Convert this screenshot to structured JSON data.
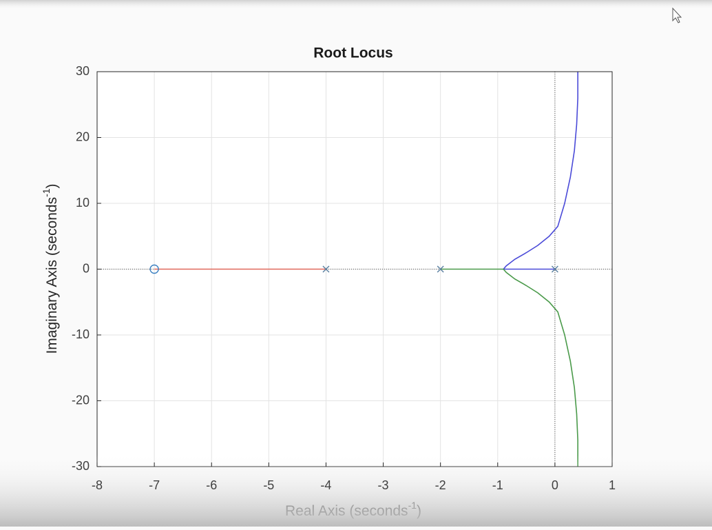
{
  "chart_data": {
    "type": "line",
    "title": "Root Locus",
    "xlabel": {
      "text": "Real Axis (seconds",
      "superscript": "-1",
      "suffix": ")"
    },
    "ylabel": {
      "text": "Imaginary Axis (seconds",
      "superscript": "-1",
      "suffix": ")"
    },
    "xlim": [
      -8,
      1
    ],
    "ylim": [
      -30,
      30
    ],
    "xticks": [
      -8,
      -7,
      -6,
      -5,
      -4,
      -3,
      -2,
      -1,
      0,
      1
    ],
    "yticks": [
      -30,
      -20,
      -10,
      0,
      10,
      20,
      30
    ],
    "grid": true,
    "series": [
      {
        "color": "#e0685a",
        "x": [
          -7,
          -4
        ],
        "values": [
          0,
          0
        ]
      },
      {
        "color": "#4a4ad8",
        "x": [
          0,
          -0.9,
          -0.85,
          -0.7,
          -0.5,
          -0.3,
          -0.1,
          0.05,
          0.17,
          0.27,
          0.34,
          0.38,
          0.4,
          0.4
        ],
        "values": [
          0,
          0,
          0.5,
          1.5,
          2.5,
          3.6,
          5,
          6.5,
          10,
          14,
          18,
          22,
          26,
          30
        ]
      },
      {
        "color": "#4a9a4a",
        "x": [
          -2,
          -0.9,
          -0.85,
          -0.7,
          -0.5,
          -0.3,
          -0.1,
          0.05,
          0.17,
          0.27,
          0.34,
          0.38,
          0.4,
          0.4
        ],
        "values": [
          0,
          0,
          -0.5,
          -1.5,
          -2.5,
          -3.6,
          -5,
          -6.5,
          -10,
          -14,
          -18,
          -22,
          -26,
          -30
        ]
      }
    ],
    "poles": {
      "color": "#5a7fa0",
      "x": [
        -4,
        -2,
        0
      ],
      "values": [
        0,
        0,
        0
      ]
    },
    "zeros": {
      "color": "#3a7fc0",
      "x": [
        -7
      ],
      "values": [
        0
      ]
    }
  }
}
